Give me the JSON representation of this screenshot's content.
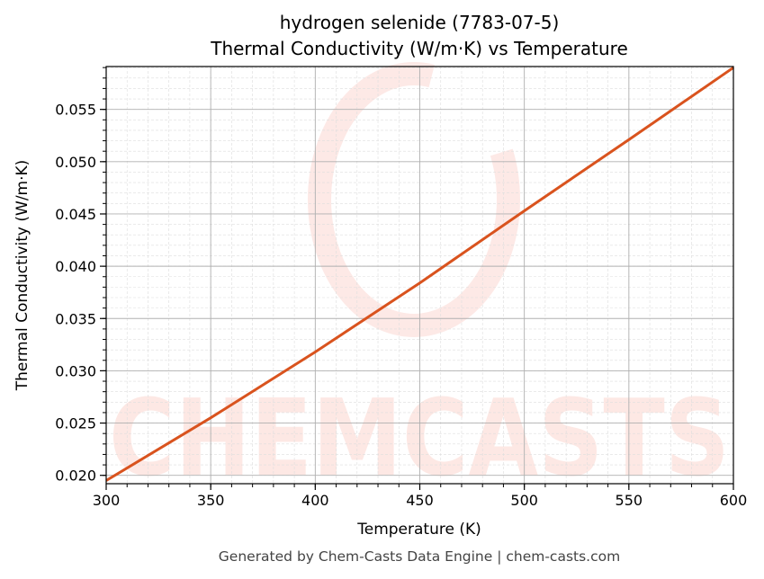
{
  "chart_data": {
    "type": "line",
    "title": "hydrogen selenide (7783-07-5)",
    "subtitle": "Thermal Conductivity (W/m·K) vs Temperature",
    "xlabel": "Temperature (K)",
    "ylabel": "Thermal Conductivity (W/m·K)",
    "xlim": [
      300,
      600
    ],
    "ylim": [
      0.0192,
      0.0591
    ],
    "xticks": [
      "300",
      "350",
      "400",
      "450",
      "500",
      "550",
      "600"
    ],
    "yticks": [
      "0.020",
      "0.025",
      "0.030",
      "0.035",
      "0.040",
      "0.045",
      "0.050",
      "0.055"
    ],
    "grid": true,
    "x": [
      300,
      350,
      400,
      450,
      500,
      550,
      600
    ],
    "y": [
      0.0195,
      0.0255,
      0.0318,
      0.0384,
      0.0453,
      0.0521,
      0.059
    ],
    "line_color": "#d9531e",
    "watermark": "CHEMCASTS"
  },
  "footer": "Generated by Chem-Casts Data Engine | chem-casts.com"
}
